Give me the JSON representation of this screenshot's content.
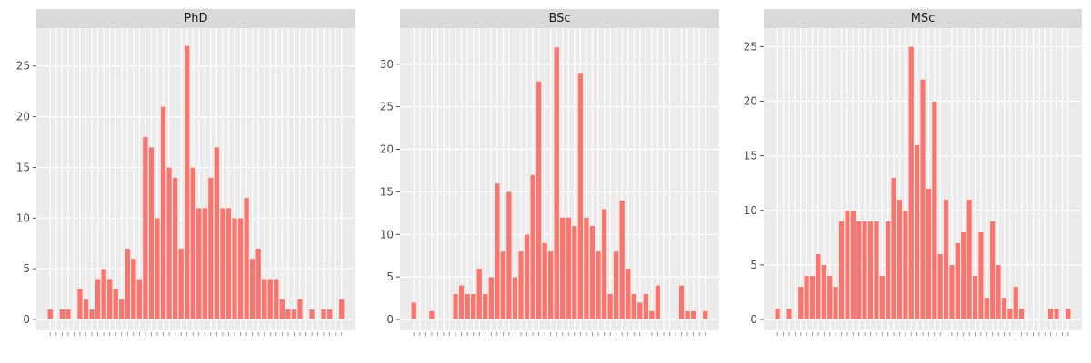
{
  "colors": {
    "bar": "#f8766d",
    "panel_bg": "#ebebeb",
    "grid": "#ffffff",
    "strip_bg": "#d9d9d9",
    "tick_text": "#4d4d4d"
  },
  "chart_data": [
    {
      "type": "bar",
      "title": "PhD",
      "ylim": [
        0,
        28.2
      ],
      "yticks": [
        0,
        5,
        10,
        15,
        20,
        25
      ],
      "grid": true,
      "values": [
        1,
        0,
        1,
        1,
        0,
        3,
        2,
        1,
        4,
        5,
        4,
        3,
        2,
        7,
        6,
        4,
        18,
        17,
        10,
        21,
        15,
        14,
        7,
        27,
        15,
        11,
        11,
        14,
        17,
        11,
        11,
        10,
        10,
        12,
        6,
        7,
        4,
        4,
        4,
        2,
        1,
        1,
        2,
        0,
        1,
        0,
        1,
        1,
        0,
        2
      ]
    },
    {
      "type": "bar",
      "title": "BSc",
      "ylim": [
        0,
        33.6
      ],
      "yticks": [
        0,
        5,
        10,
        15,
        20,
        25,
        30
      ],
      "grid": true,
      "values": [
        2,
        0,
        0,
        1,
        0,
        0,
        0,
        3,
        4,
        3,
        3,
        6,
        3,
        5,
        16,
        8,
        15,
        5,
        8,
        10,
        17,
        28,
        9,
        8,
        32,
        12,
        12,
        11,
        29,
        12,
        11,
        8,
        13,
        3,
        8,
        14,
        6,
        3,
        2,
        3,
        1,
        4,
        0,
        0,
        0,
        4,
        1,
        1,
        0,
        1
      ]
    },
    {
      "type": "bar",
      "title": "MSc",
      "ylim": [
        0,
        26.2
      ],
      "yticks": [
        0,
        5,
        10,
        15,
        20,
        25
      ],
      "grid": true,
      "values": [
        1,
        0,
        1,
        0,
        3,
        4,
        4,
        6,
        5,
        4,
        3,
        9,
        10,
        10,
        9,
        9,
        9,
        9,
        4,
        9,
        13,
        11,
        10,
        25,
        16,
        22,
        12,
        20,
        6,
        11,
        5,
        7,
        8,
        11,
        4,
        8,
        2,
        9,
        5,
        2,
        1,
        3,
        1,
        0,
        0,
        0,
        0,
        1,
        1,
        0,
        1
      ]
    }
  ]
}
